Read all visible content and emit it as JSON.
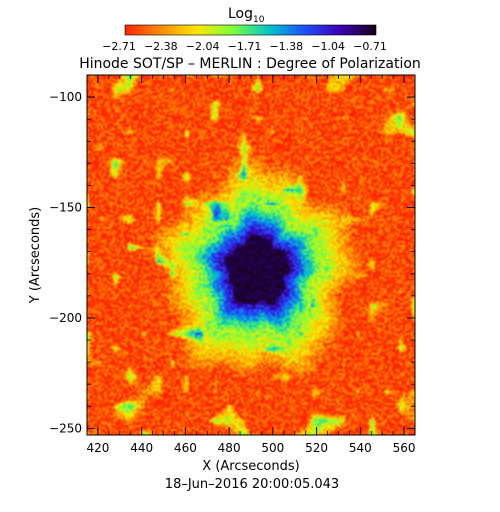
{
  "chart_data": {
    "type": "heatmap",
    "title": "Hinode SOT/SP – MERLIN : Degree of Polarization",
    "colorbar": {
      "label": "Log",
      "label_subscript": "10",
      "ticks": [
        "−2.71",
        "−2.38",
        "−2.04",
        "−1.71",
        "−1.38",
        "−1.04",
        "−0.71"
      ],
      "range": [
        -2.71,
        -0.71
      ],
      "colormap": [
        "#ff2400",
        "#ff8c00",
        "#ffe600",
        "#7dff3a",
        "#00c8c8",
        "#1e50ff",
        "#3c00b4",
        "#160018"
      ]
    },
    "xlabel": "X (Arcseconds)",
    "ylabel": "Y (Arcseconds)",
    "xlim": [
      415,
      565
    ],
    "ylim": [
      -253,
      -90
    ],
    "xticks": [
      "420",
      "440",
      "460",
      "480",
      "500",
      "520",
      "540",
      "560"
    ],
    "yticks": [
      "−100",
      "−150",
      "−200",
      "−250"
    ],
    "sunspot": {
      "center": [
        493,
        -179
      ],
      "umbra_radius_arcsec": 14,
      "penumbra_radius_arcsec": 28
    },
    "background_value": -2.7,
    "footer": "18–Jun–2016 20:00:05.043"
  }
}
